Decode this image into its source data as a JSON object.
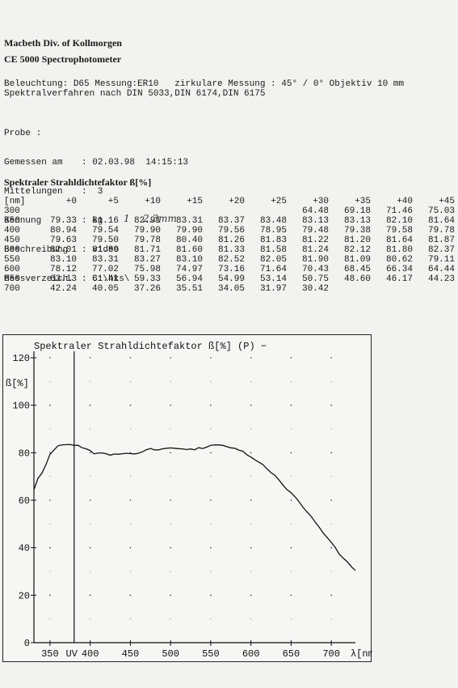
{
  "header": {
    "company": "Macbeth  Div. of Kollmorgen",
    "instrument": "CE 5000    Spectrophotometer"
  },
  "conditions": {
    "line1": "Beleuchtung: D65 Messung:ER10   zirkulare Messung : 45° / 0° Objektiv 10 mm",
    "line2": "Spektralverfahren nach DIN 5033,DIN 6174,DIN 6175"
  },
  "probe": {
    "title": "Probe :",
    "fields": [
      {
        "label": "Gemessen am",
        "value": ": 02.03.98  14:15:13"
      },
      {
        "label": "Mittelungen",
        "value": ":  3"
      },
      {
        "label": "Kennung",
        "value": ": kg"
      },
      {
        "label": "Beschreibung",
        "value": ": video"
      },
      {
        "label": "Messverzeich.",
        "value": ": C:\\hks\\"
      }
    ],
    "handwritten_1": "1",
    "handwritten_2": "2,3mm"
  },
  "spectral_table": {
    "title": "Spektraler Strahldichtefaktor ß[%]",
    "unit_header": "[nm]",
    "offsets": [
      "+0",
      "+5",
      "+10",
      "+15",
      "+20",
      "+25",
      "+30",
      "+35",
      "+40",
      "+45"
    ],
    "rows": [
      {
        "wl": "300",
        "vals": [
          "",
          "",
          "",
          "",
          "",
          "",
          "64.48",
          "69.18",
          "71.46",
          "75.03"
        ]
      },
      {
        "wl": "350",
        "vals": [
          "79.33",
          "81.16",
          "82.91",
          "83.31",
          "83.37",
          "83.48",
          "83.13",
          "83.13",
          "82.10",
          "81.64"
        ]
      },
      {
        "wl": "400",
        "vals": [
          "80.94",
          "79.54",
          "79.90",
          "79.90",
          "79.56",
          "78.95",
          "79.48",
          "79.38",
          "79.58",
          "79.78"
        ]
      },
      {
        "wl": "450",
        "vals": [
          "79.63",
          "79.50",
          "79.78",
          "80.40",
          "81.26",
          "81.83",
          "81.22",
          "81.20",
          "81.64",
          "81.87"
        ]
      },
      {
        "wl": "500",
        "vals": [
          "82.01",
          "81.89",
          "81.71",
          "81.60",
          "81.33",
          "81.58",
          "81.24",
          "82.12",
          "81.80",
          "82.37"
        ]
      },
      {
        "wl": "550",
        "vals": [
          "83.10",
          "83.31",
          "83.27",
          "83.10",
          "82.52",
          "82.05",
          "81.90",
          "81.09",
          "80.62",
          "79.11"
        ]
      },
      {
        "wl": "600",
        "vals": [
          "78.12",
          "77.02",
          "75.98",
          "74.97",
          "73.16",
          "71.64",
          "70.43",
          "68.45",
          "66.34",
          "64.44"
        ]
      },
      {
        "wl": "650",
        "vals": [
          "63.13",
          "61.41",
          "59.33",
          "56.94",
          "54.99",
          "53.14",
          "50.75",
          "48.60",
          "46.17",
          "44.23"
        ]
      },
      {
        "wl": "700",
        "vals": [
          "42.24",
          "40.05",
          "37.26",
          "35.51",
          "34.05",
          "31.97",
          "30.42",
          "",
          "",
          ""
        ]
      }
    ]
  },
  "chart_data": {
    "type": "line",
    "title": "Spektraler Strahldichtefaktor ß[%]",
    "title_suffix": "(P)",
    "ylabel": "ß[%]",
    "xlabel": "λ[nm]",
    "uv_label": "UV",
    "xlim": [
      330,
      730
    ],
    "ylim": [
      0,
      120
    ],
    "x_ticks": [
      350,
      400,
      450,
      500,
      550,
      600,
      650,
      700
    ],
    "y_ticks": [
      0,
      20,
      40,
      60,
      80,
      100,
      120
    ],
    "uv_marker_x": 380,
    "grid": "dotted",
    "series": [
      {
        "values_ref": "spectral_table",
        "x": [
          330,
          335,
          340,
          345,
          350,
          355,
          360,
          365,
          370,
          375,
          380,
          385,
          390,
          395,
          400,
          405,
          410,
          415,
          420,
          425,
          430,
          435,
          440,
          445,
          450,
          455,
          460,
          465,
          470,
          475,
          480,
          485,
          490,
          495,
          500,
          505,
          510,
          515,
          520,
          525,
          530,
          535,
          540,
          545,
          550,
          555,
          560,
          565,
          570,
          575,
          580,
          585,
          590,
          595,
          600,
          605,
          610,
          615,
          620,
          625,
          630,
          635,
          640,
          645,
          650,
          655,
          660,
          665,
          670,
          675,
          680,
          685,
          690,
          695,
          700,
          705,
          710,
          715,
          720,
          725,
          730
        ],
        "y": [
          64.48,
          69.18,
          71.46,
          75.03,
          79.33,
          81.16,
          82.91,
          83.31,
          83.37,
          83.48,
          83.13,
          83.13,
          82.1,
          81.64,
          80.94,
          79.54,
          79.9,
          79.9,
          79.56,
          78.95,
          79.48,
          79.38,
          79.58,
          79.78,
          79.63,
          79.5,
          79.78,
          80.4,
          81.26,
          81.83,
          81.22,
          81.2,
          81.64,
          81.87,
          82.01,
          81.89,
          81.71,
          81.6,
          81.33,
          81.58,
          81.24,
          82.12,
          81.8,
          82.37,
          83.1,
          83.31,
          83.27,
          83.1,
          82.52,
          82.05,
          81.9,
          81.09,
          80.62,
          79.11,
          78.12,
          77.02,
          75.98,
          74.97,
          73.16,
          71.64,
          70.43,
          68.45,
          66.34,
          64.44,
          63.13,
          61.41,
          59.33,
          56.94,
          54.99,
          53.14,
          50.75,
          48.6,
          46.17,
          44.23,
          42.24,
          40.05,
          37.26,
          35.51,
          34.05,
          31.97,
          30.42
        ]
      }
    ]
  }
}
